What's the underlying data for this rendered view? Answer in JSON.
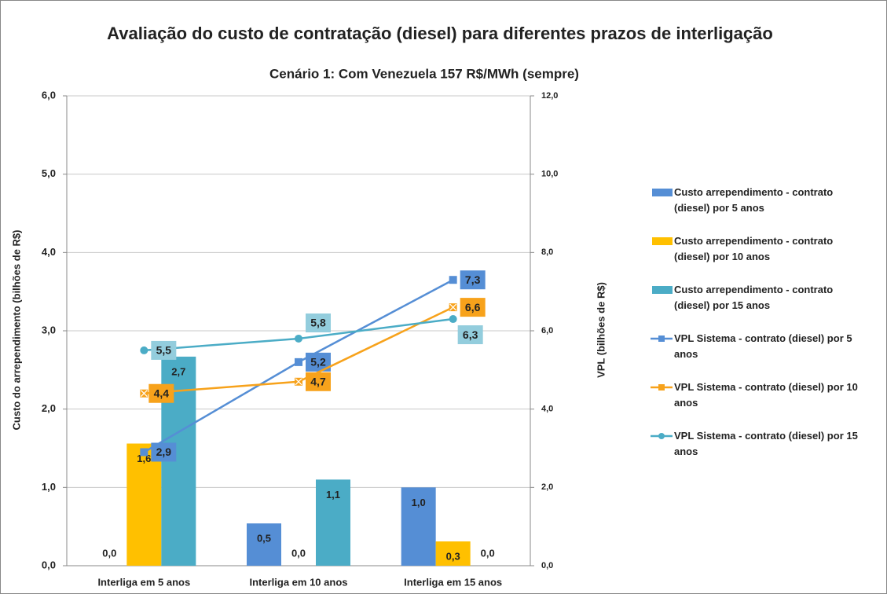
{
  "chart_data": {
    "type": "bar",
    "title": "Avaliação do custo de contratação (diesel) para diferentes prazos de interligação",
    "subtitle": "Cenário 1: Com Venezuela 157 R$/MWh (sempre)",
    "ylabel": "Custo do arrependimento (bilhões de R$)",
    "y2label": "VPL (bilhões de R$)",
    "categories": [
      "Interliga em 5 anos",
      "Interliga em 10 anos",
      "Interliga em 15 anos"
    ],
    "ylim": [
      0,
      6
    ],
    "yticks": [
      {
        "value": 0,
        "label": "0,0"
      },
      {
        "value": 1,
        "label": "1,0"
      },
      {
        "value": 2,
        "label": "2,0"
      },
      {
        "value": 3,
        "label": "3,0"
      },
      {
        "value": 4,
        "label": "4,0"
      },
      {
        "value": 5,
        "label": "5,0"
      },
      {
        "value": 6,
        "label": "6,0"
      }
    ],
    "y2lim": [
      0,
      12
    ],
    "y2ticks": [
      {
        "value": 0,
        "label": "0,0"
      },
      {
        "value": 2,
        "label": "2,0"
      },
      {
        "value": 4,
        "label": "4,0"
      },
      {
        "value": 6,
        "label": "6,0"
      },
      {
        "value": 8,
        "label": "8,0"
      },
      {
        "value": 10,
        "label": "10,0"
      },
      {
        "value": 12,
        "label": "12,0"
      }
    ],
    "grid": true,
    "legend": "right",
    "series": [
      {
        "name": "Custo arrependimento - contrato (diesel) por 5 anos",
        "type": "bar",
        "color": "#558ED5",
        "values": [
          0.0,
          0.54,
          1.0
        ],
        "value_labels": [
          "0,0",
          "0,5",
          "1,0"
        ]
      },
      {
        "name": "Custo arrependimento - contrato (diesel) por 10 anos",
        "type": "bar",
        "color": "#FFC000",
        "values": [
          1.56,
          0.0,
          0.31
        ],
        "value_labels": [
          "1,6",
          "0,0",
          "0,3"
        ]
      },
      {
        "name": "Custo arrependimento - contrato (diesel) por 15 anos",
        "type": "bar",
        "color": "#4BACC6",
        "values": [
          2.67,
          1.1,
          0.0
        ],
        "value_labels": [
          "2,7",
          "1,1",
          "0,0"
        ]
      },
      {
        "name": "VPL Sistema - contrato (diesel) por 5 anos",
        "type": "line",
        "axis": "y2",
        "marker": "square",
        "color": "#558ED5",
        "values": [
          2.9,
          5.2,
          7.3
        ],
        "value_labels": [
          "2,9",
          "5,2",
          "7,3"
        ]
      },
      {
        "name": "VPL Sistema - contrato (diesel) por 10 anos",
        "type": "line",
        "axis": "y2",
        "marker": "x",
        "color": "#F7A21B",
        "values": [
          4.4,
          4.7,
          6.6
        ],
        "value_labels": [
          "4,4",
          "4,7",
          "6,6"
        ]
      },
      {
        "name": "VPL Sistema - contrato (diesel) por 15 anos",
        "type": "line",
        "axis": "y2",
        "marker": "circle",
        "color": "#4BACC6",
        "values": [
          5.5,
          5.8,
          6.3
        ],
        "value_labels": [
          "5,5",
          "5,8",
          "6,3"
        ]
      }
    ]
  }
}
